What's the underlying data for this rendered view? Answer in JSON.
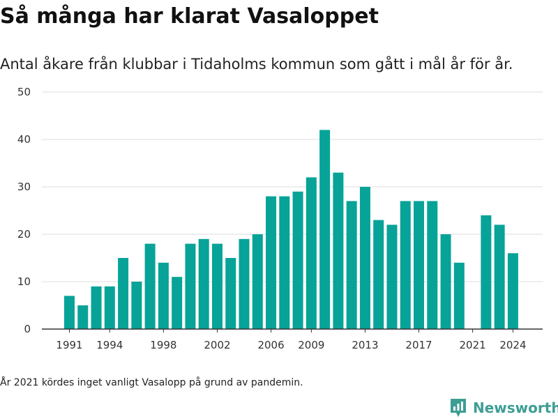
{
  "title": "Så många har klarat Vasaloppet",
  "subtitle": "Antal åkare från klubbar i Tidaholms kommun som gått i mål år för år.",
  "footnote": "År 2021 kördes inget vanligt Vasalopp på grund av pandemin.",
  "brand": {
    "name": "Newsworthy",
    "icon": "newsworthy-logo-icon",
    "color": "#3d9e94"
  },
  "chart_data": {
    "type": "bar",
    "title": "",
    "xlabel": "",
    "ylabel": "",
    "color": "#07a398",
    "ylim": [
      0,
      50
    ],
    "yticks": [
      0,
      10,
      20,
      30,
      40,
      50
    ],
    "xticks": [
      1991,
      1994,
      1998,
      2002,
      2006,
      2009,
      2013,
      2017,
      2021,
      2024
    ],
    "grid": true,
    "categories": [
      1991,
      1992,
      1993,
      1994,
      1995,
      1996,
      1997,
      1998,
      1999,
      2000,
      2001,
      2002,
      2003,
      2004,
      2005,
      2006,
      2007,
      2008,
      2009,
      2010,
      2011,
      2012,
      2013,
      2014,
      2015,
      2016,
      2017,
      2018,
      2019,
      2020,
      2021,
      2022,
      2023,
      2024
    ],
    "values": [
      7,
      5,
      9,
      9,
      15,
      10,
      18,
      14,
      11,
      18,
      19,
      18,
      15,
      19,
      20,
      28,
      28,
      29,
      32,
      42,
      33,
      27,
      30,
      23,
      22,
      27,
      27,
      27,
      20,
      14,
      null,
      24,
      22,
      16
    ]
  }
}
